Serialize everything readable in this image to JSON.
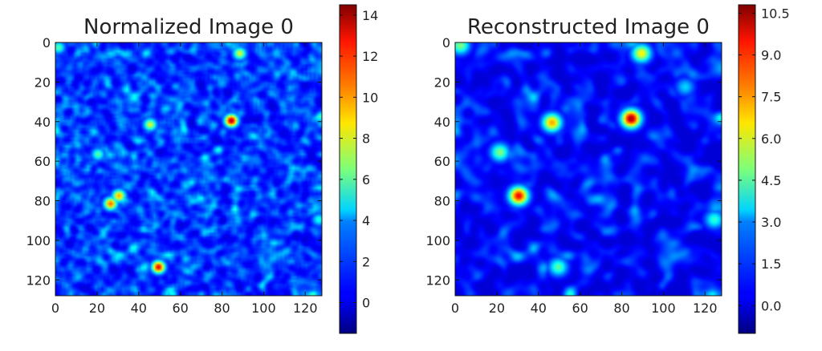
{
  "chart_data": [
    {
      "type": "heatmap",
      "title": "Normalized Image 0",
      "colormap": "jet",
      "x_ticks": [
        "0",
        "20",
        "40",
        "60",
        "80",
        "100",
        "120"
      ],
      "y_ticks": [
        "0",
        "20",
        "40",
        "60",
        "80",
        "100",
        "120"
      ],
      "xlim": [
        0,
        128
      ],
      "ylim": [
        128,
        0
      ],
      "colorbar": {
        "min": -1.5,
        "max": 14.5,
        "ticks": [
          "0",
          "2",
          "4",
          "6",
          "8",
          "10",
          "12",
          "14"
        ],
        "tick_values": [
          0,
          2,
          4,
          6,
          8,
          10,
          12,
          14
        ]
      },
      "hot_spots": [
        {
          "x": 84,
          "y": 39,
          "value": 14
        },
        {
          "x": 49,
          "y": 113,
          "value": 13
        },
        {
          "x": 26,
          "y": 81,
          "value": 11
        },
        {
          "x": 30,
          "y": 77,
          "value": 10
        },
        {
          "x": 45,
          "y": 41,
          "value": 8
        },
        {
          "x": 88,
          "y": 5,
          "value": 8
        },
        {
          "x": 1,
          "y": 2,
          "value": 6
        },
        {
          "x": 20,
          "y": 56,
          "value": 6
        },
        {
          "x": 126,
          "y": 89,
          "value": 5
        }
      ]
    },
    {
      "type": "heatmap",
      "title": "Reconstructed Image 0",
      "colormap": "jet",
      "x_ticks": [
        "0",
        "20",
        "40",
        "60",
        "80",
        "100",
        "120"
      ],
      "y_ticks": [
        "0",
        "20",
        "40",
        "60",
        "80",
        "100",
        "120"
      ],
      "xlim": [
        0,
        128
      ],
      "ylim": [
        128,
        0
      ],
      "colorbar": {
        "min": -1.0,
        "max": 10.8,
        "ticks": [
          "0.0",
          "1.5",
          "3.0",
          "4.5",
          "6.0",
          "7.5",
          "9.0",
          "10.5"
        ],
        "tick_values": [
          0,
          1.5,
          3,
          4.5,
          6,
          7.5,
          9,
          10.5
        ]
      },
      "hot_spots": [
        {
          "x": 84,
          "y": 38,
          "value": 10.5
        },
        {
          "x": 30,
          "y": 77,
          "value": 9.5
        },
        {
          "x": 46,
          "y": 40,
          "value": 7.5
        },
        {
          "x": 89,
          "y": 5,
          "value": 6.5
        },
        {
          "x": 2,
          "y": 1,
          "value": 5
        },
        {
          "x": 21,
          "y": 55,
          "value": 5
        },
        {
          "x": 49,
          "y": 113,
          "value": 4.5
        },
        {
          "x": 124,
          "y": 89,
          "value": 4
        },
        {
          "x": 110,
          "y": 22,
          "value": 3
        }
      ]
    }
  ]
}
